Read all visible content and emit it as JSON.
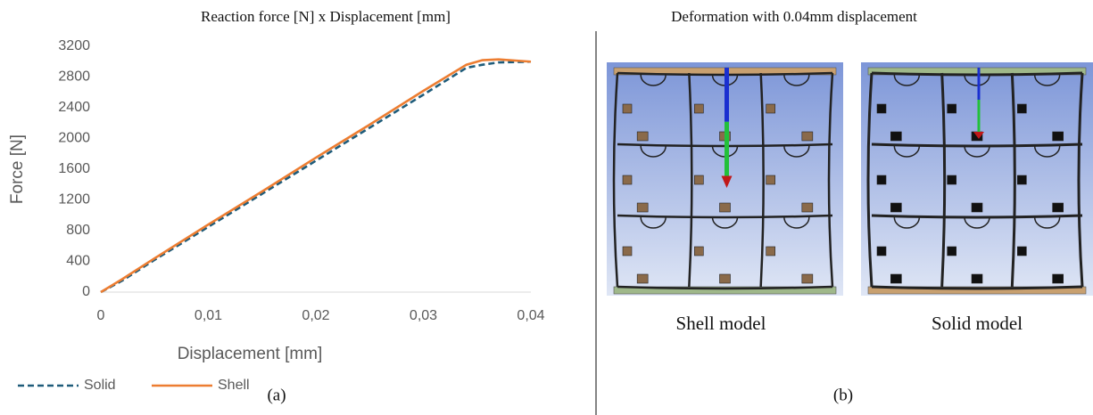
{
  "chart_data": {
    "type": "line",
    "title": "Reaction force [N] x Displacement [mm]",
    "x_label": "Displacement [mm]",
    "y_label": "Force [N]",
    "x": [
      0,
      0.002,
      0.005,
      0.01,
      0.015,
      0.02,
      0.025,
      0.03,
      0.034,
      0.0355,
      0.037,
      0.04
    ],
    "series": [
      {
        "name": "Solid",
        "color": "#1f5c7a",
        "dashed": true,
        "values": [
          0,
          150,
          420,
          850,
          1280,
          1710,
          2140,
          2570,
          2920,
          2960,
          2990,
          3000
        ]
      },
      {
        "name": "Shell",
        "color": "#ed7d31",
        "dashed": false,
        "values": [
          0,
          170,
          440,
          880,
          1310,
          1750,
          2180,
          2620,
          2960,
          3020,
          3030,
          3000
        ]
      }
    ],
    "xlim": [
      0,
      0.04
    ],
    "xticks": [
      0,
      {
        "value": 0.01,
        "label": "0,01"
      },
      {
        "value": 0.02,
        "label": "0,02"
      },
      {
        "value": 0.03,
        "label": "0,03"
      },
      {
        "value": 0.04,
        "label": "0,04"
      }
    ],
    "ylim": [
      0,
      3200
    ],
    "yticks": [
      0,
      400,
      800,
      1200,
      1600,
      2000,
      2400,
      2800,
      3200
    ],
    "grid": false
  },
  "panel_a_label": "(a)",
  "panel_b": {
    "title": "Deformation with 0.04mm displacement",
    "captions": [
      "Shell model",
      "Solid model"
    ],
    "label": "(b)"
  }
}
